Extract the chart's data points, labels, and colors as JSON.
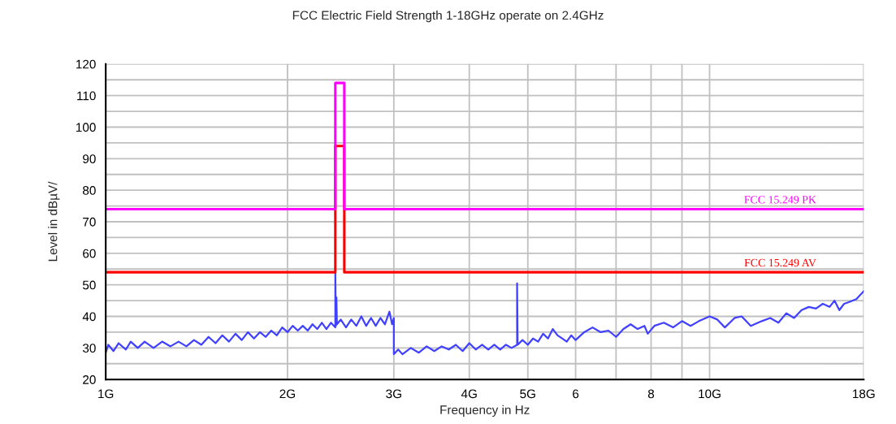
{
  "chart_data": {
    "type": "line",
    "title": "FCC Electric Field Strength 1-18GHz operate on 2.4GHz",
    "xlabel": "Frequency in Hz",
    "ylabel": "Level in dBµV/",
    "log": "x",
    "grid": true,
    "xlim": [
      1,
      18
    ],
    "xticks": [
      {
        "value": 1,
        "label": "1G"
      },
      {
        "value": 2,
        "label": "2G"
      },
      {
        "value": 3,
        "label": "3G"
      },
      {
        "value": 4,
        "label": "4G"
      },
      {
        "value": 5,
        "label": "5G"
      },
      6,
      {
        "value": 7,
        "label": null
      },
      8,
      {
        "value": 9,
        "label": null
      },
      {
        "value": 10,
        "label": "10G"
      },
      {
        "value": 18,
        "label": "18G"
      }
    ],
    "ylim": [
      20,
      120
    ],
    "yticks": [
      20,
      {
        "value": 25,
        "label": null
      },
      30,
      {
        "value": 35,
        "label": null
      },
      40,
      {
        "value": 45,
        "label": null
      },
      50,
      {
        "value": 55,
        "label": null
      },
      60,
      {
        "value": 65,
        "label": null
      },
      70,
      {
        "value": 75,
        "label": null
      },
      80,
      {
        "value": 85,
        "label": null
      },
      90,
      {
        "value": 95,
        "label": null
      },
      100,
      {
        "value": 105,
        "label": null
      },
      110,
      {
        "value": 115,
        "label": null
      },
      120
    ],
    "series": [
      {
        "color": "#4040ff",
        "x": [
          1.0,
          1.01,
          1.03,
          1.05,
          1.08,
          1.1,
          1.13,
          1.16,
          1.2,
          1.24,
          1.28,
          1.32,
          1.36,
          1.4,
          1.44,
          1.48,
          1.52,
          1.56,
          1.6,
          1.64,
          1.68,
          1.72,
          1.76,
          1.8,
          1.84,
          1.88,
          1.92,
          1.96,
          2.0,
          2.04,
          2.08,
          2.12,
          2.16,
          2.2,
          2.24,
          2.28,
          2.32,
          2.36,
          2.4,
          2.4,
          2.405,
          2.41,
          2.415,
          2.45,
          2.5,
          2.55,
          2.6,
          2.65,
          2.7,
          2.75,
          2.8,
          2.85,
          2.9,
          2.95,
          2.98,
          3.0,
          3.0,
          3.05,
          3.1,
          3.2,
          3.3,
          3.4,
          3.5,
          3.6,
          3.7,
          3.8,
          3.9,
          4.0,
          4.1,
          4.2,
          4.3,
          4.4,
          4.5,
          4.6,
          4.7,
          4.8,
          4.8,
          4.81,
          4.9,
          5.0,
          5.1,
          5.2,
          5.3,
          5.4,
          5.5,
          5.6,
          5.7,
          5.8,
          5.9,
          6.0,
          6.2,
          6.4,
          6.6,
          6.8,
          7.0,
          7.2,
          7.4,
          7.6,
          7.8,
          7.9,
          8.1,
          8.4,
          8.7,
          9.0,
          9.3,
          9.6,
          10.0,
          10.3,
          10.6,
          11.0,
          11.3,
          11.7,
          12.2,
          12.6,
          13.0,
          13.4,
          13.8,
          14.2,
          14.6,
          15.0,
          15.4,
          15.8,
          16.1,
          16.4,
          16.7,
          17.0,
          17.5,
          18.0
        ],
        "values": [
          28.5,
          31,
          29,
          31.5,
          29.5,
          32,
          30,
          32,
          30,
          32,
          30.5,
          32,
          30.5,
          32.5,
          31,
          33.5,
          31.5,
          34,
          32,
          34.5,
          32.5,
          35,
          33,
          35,
          33.5,
          35.5,
          34,
          36.5,
          35,
          37,
          35.5,
          37,
          35.5,
          37.5,
          36,
          38,
          36,
          38,
          36.5,
          54,
          37,
          46,
          37.5,
          39,
          36.5,
          39,
          37,
          40,
          37,
          39.5,
          37,
          39.5,
          37.5,
          41.5,
          37.5,
          39.5,
          28,
          29.5,
          28,
          30,
          28.5,
          30.5,
          29,
          30.5,
          29.5,
          31,
          29,
          31.5,
          29.5,
          31,
          29.5,
          31,
          29.5,
          31,
          30,
          31,
          50.5,
          31,
          32.5,
          31,
          33,
          32,
          34.5,
          33,
          36,
          34,
          33,
          32,
          34,
          32.5,
          35,
          36.5,
          35,
          35.5,
          33.5,
          36,
          37.5,
          36,
          37,
          34.5,
          37,
          38,
          36.5,
          38.5,
          37,
          38.5,
          40,
          39,
          36.5,
          39.5,
          40,
          37,
          38.5,
          39.5,
          38,
          41,
          39.5,
          42,
          43,
          42.5,
          44,
          43,
          45,
          42,
          44,
          44.5,
          45.5,
          48
        ]
      },
      {
        "name": "FCC 15.249 AV",
        "color": "#ff0000",
        "x": [
          1,
          2.4,
          2.4,
          2.4835,
          2.4835,
          18
        ],
        "values": [
          54,
          54,
          94,
          94,
          54,
          54
        ]
      },
      {
        "name": "FCC 15.249 PK",
        "color": "#ff00ff",
        "x": [
          1,
          2.4,
          2.4,
          2.4835,
          2.4835,
          18
        ],
        "values": [
          74,
          74,
          114,
          114,
          74,
          74
        ]
      }
    ]
  }
}
